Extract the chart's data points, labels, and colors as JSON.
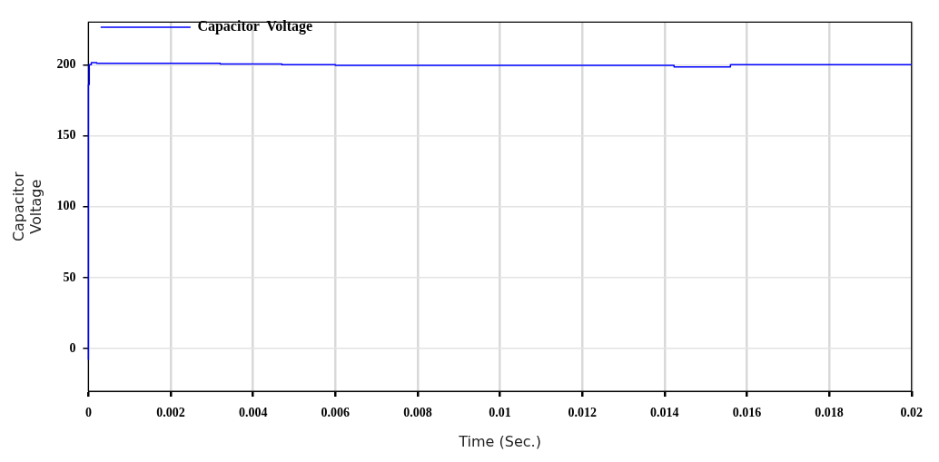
{
  "chart_data": {
    "type": "step",
    "xlabel": "Time (Sec.)",
    "ylabel": "Capacitor Voltage",
    "xlim": [
      0,
      0.02
    ],
    "xticks": [
      0,
      0.002,
      0.004,
      0.006,
      0.008,
      0.01,
      0.012,
      0.014,
      0.016,
      0.018,
      0.02
    ],
    "ylim": [
      -30,
      230
    ],
    "yticks": [
      0,
      50,
      100,
      150,
      200
    ],
    "grid": true,
    "legend": "top left",
    "series": [
      {
        "name": "Capacitor  Voltage",
        "color": "#0000ff",
        "x": [
          0,
          2e-05,
          7e-05,
          0.0002,
          0.0032,
          0.0047,
          0.006,
          0.01423,
          0.0156,
          0.01837,
          0.02
        ],
        "values": [
          -8,
          186,
          200,
          201.5,
          201,
          200.5,
          200,
          199.5,
          198.5,
          200,
          200
        ]
      }
    ]
  }
}
